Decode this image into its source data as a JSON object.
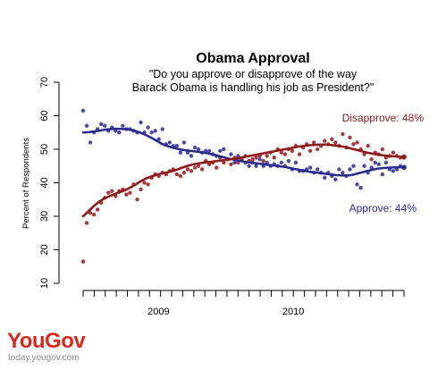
{
  "chart_data": {
    "type": "scatter",
    "title": "Obama Approval",
    "subtitle_lines": [
      "\"Do you approve or disapprove of the way",
      "Barack Obama is handling his job as President?\""
    ],
    "ylabel": "Percent of Respondents",
    "ylim": [
      10,
      70
    ],
    "yticks": [
      10,
      20,
      30,
      40,
      50,
      60,
      70
    ],
    "x_tick_labels": [
      "2009",
      "2010"
    ],
    "grid": false,
    "n_weeks": 90,
    "series": [
      {
        "key": "approve",
        "color": "#2b2b8c",
        "point_color": "#4a4aa6",
        "annotation": "Approve: 44%",
        "values": [
          61.5,
          57.0,
          52.0,
          55.0,
          56.0,
          57.5,
          57.0,
          55.5,
          56.5,
          55.5,
          55.0,
          57.0,
          56.0,
          56.0,
          55.5,
          55.0,
          58.0,
          55.0,
          56.5,
          55.0,
          55.5,
          53.0,
          56.0,
          51.5,
          52.0,
          51.0,
          51.0,
          49.0,
          52.0,
          49.0,
          48.0,
          50.5,
          50.0,
          49.0,
          49.5,
          49.5,
          48.5,
          48.0,
          49.5,
          50.0,
          47.0,
          48.5,
          46.0,
          48.0,
          47.0,
          46.0,
          45.0,
          46.0,
          45.0,
          47.0,
          45.0,
          46.0,
          45.0,
          45.5,
          45.0,
          46.0,
          45.0,
          46.5,
          44.0,
          46.0,
          43.5,
          43.5,
          44.0,
          44.5,
          43.0,
          44.0,
          43.0,
          41.5,
          43.0,
          42.0,
          41.0,
          44.0,
          43.0,
          42.0,
          44.0,
          45.0,
          39.5,
          38.5,
          45.0,
          43.0,
          44.5,
          46.0,
          45.5,
          42.5,
          46.0,
          44.0,
          43.5,
          44.0,
          45.0,
          44.5
        ],
        "trend": [
          55.0,
          55.1,
          55.3,
          55.5,
          55.8,
          56.0,
          56.1,
          56.1,
          56.0,
          55.8,
          55.4,
          54.9,
          54.2,
          53.4,
          52.5,
          51.6,
          51.0,
          50.5,
          50.1,
          49.8,
          49.6,
          49.4,
          49.2,
          49.0,
          48.7,
          48.3,
          47.9,
          47.5,
          47.1,
          46.8,
          46.5,
          46.2,
          46.0,
          45.8,
          45.6,
          45.4,
          45.2,
          45.0,
          44.8,
          44.5,
          44.2,
          43.9,
          43.6,
          43.3,
          43.1,
          42.9,
          42.7,
          42.5,
          42.3,
          42.2,
          42.2,
          42.3,
          42.7,
          43.1,
          43.5,
          43.9,
          44.2,
          44.4,
          44.5,
          44.6,
          44.6,
          44.6
        ]
      },
      {
        "key": "disapprove",
        "color": "#8b1a1a",
        "point_color": "#a33a3a",
        "annotation": "Disapprove: 48%",
        "values": [
          16.5,
          28.0,
          31.0,
          30.5,
          32.0,
          34.0,
          35.5,
          37.0,
          37.5,
          36.0,
          37.5,
          38.0,
          36.5,
          37.0,
          39.5,
          35.0,
          38.0,
          40.0,
          39.5,
          41.5,
          42.5,
          42.0,
          43.0,
          42.5,
          43.5,
          44.0,
          42.5,
          42.0,
          43.0,
          44.0,
          43.5,
          44.5,
          45.0,
          44.0,
          46.5,
          45.5,
          46.0,
          44.5,
          47.5,
          46.0,
          47.0,
          45.5,
          47.5,
          46.0,
          47.0,
          48.0,
          46.5,
          47.0,
          47.5,
          48.0,
          46.5,
          48.0,
          49.0,
          47.5,
          50.0,
          49.0,
          48.5,
          50.0,
          49.5,
          51.0,
          48.5,
          50.5,
          51.5,
          49.5,
          52.0,
          50.0,
          51.0,
          52.5,
          51.5,
          53.0,
          52.0,
          51.0,
          54.5,
          50.5,
          53.5,
          51.5,
          52.0,
          50.0,
          48.5,
          51.0,
          47.0,
          49.0,
          48.5,
          50.0,
          47.5,
          48.0,
          49.0,
          48.0,
          47.5,
          47.5
        ],
        "trend": [
          30.0,
          31.5,
          33.0,
          34.3,
          35.3,
          36.0,
          36.6,
          37.2,
          37.8,
          38.6,
          39.5,
          40.5,
          41.3,
          41.9,
          42.4,
          42.8,
          43.1,
          43.5,
          44.0,
          44.6,
          45.1,
          45.5,
          45.8,
          46.0,
          46.2,
          46.4,
          46.6,
          46.8,
          47.0,
          47.2,
          47.5,
          47.8,
          48.1,
          48.4,
          48.7,
          49.0,
          49.3,
          49.6,
          49.9,
          50.2,
          50.5,
          50.8,
          51.0,
          51.2,
          51.3,
          51.4,
          51.4,
          51.3,
          51.1,
          50.9,
          50.6,
          50.2,
          49.8,
          49.4,
          49.0,
          48.7,
          48.4,
          48.2,
          48.0,
          47.9,
          47.8,
          47.7
        ]
      }
    ]
  },
  "brand": {
    "logo_you": "You",
    "logo_gov": "Gov",
    "url": "today.yougov.com"
  }
}
